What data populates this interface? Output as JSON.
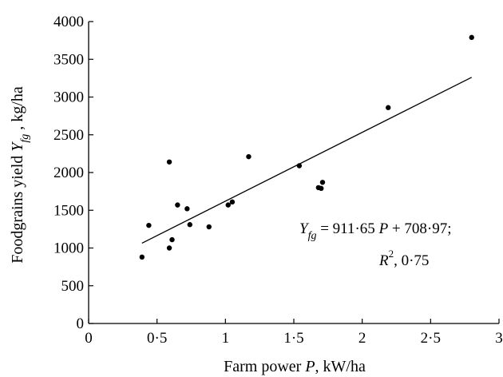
{
  "chart_data": {
    "type": "scatter",
    "xlabel_prefix": "Farm power ",
    "xlabel_var": "P",
    "xlabel_suffix": ", kW/ha",
    "ylabel_prefix": "Foodgrains yield ",
    "ylabel_var": "Y",
    "ylabel_sub": "fg",
    "ylabel_suffix": " , kg/ha",
    "xlim": [
      0,
      3
    ],
    "ylim": [
      0,
      4000
    ],
    "x_ticks": [
      0,
      0.5,
      1,
      1.5,
      2,
      2.5,
      3
    ],
    "x_tick_labels": [
      "0",
      "0·5",
      "1",
      "1·5",
      "2",
      "2·5",
      "3"
    ],
    "y_ticks": [
      0,
      500,
      1000,
      1500,
      2000,
      2500,
      3000,
      3500,
      4000
    ],
    "y_tick_labels": [
      "0",
      "500",
      "1000",
      "1500",
      "2000",
      "2500",
      "3000",
      "3500",
      "4000"
    ],
    "grid": false,
    "points": [
      {
        "x": 0.39,
        "y": 880
      },
      {
        "x": 0.44,
        "y": 1300
      },
      {
        "x": 0.59,
        "y": 2140
      },
      {
        "x": 0.59,
        "y": 1000
      },
      {
        "x": 0.61,
        "y": 1110
      },
      {
        "x": 0.65,
        "y": 1570
      },
      {
        "x": 0.72,
        "y": 1520
      },
      {
        "x": 0.74,
        "y": 1310
      },
      {
        "x": 0.88,
        "y": 1280
      },
      {
        "x": 1.02,
        "y": 1570
      },
      {
        "x": 1.05,
        "y": 1610
      },
      {
        "x": 1.17,
        "y": 2210
      },
      {
        "x": 1.54,
        "y": 2090
      },
      {
        "x": 1.68,
        "y": 1800
      },
      {
        "x": 1.7,
        "y": 1790
      },
      {
        "x": 1.71,
        "y": 1870
      },
      {
        "x": 2.19,
        "y": 2860
      },
      {
        "x": 2.8,
        "y": 3790
      }
    ],
    "fit": {
      "slope": 911.65,
      "intercept": 708.97,
      "x_range": [
        0.39,
        2.8
      ]
    },
    "annotation": {
      "eq_var": "Y",
      "eq_sub": "fg",
      "eq_text": " = 911·65 ",
      "eq_p": "P",
      "eq_tail": " + 708·97;",
      "r2_var": "R",
      "r2_exp": "2",
      "r2_text": ", 0·75"
    }
  }
}
